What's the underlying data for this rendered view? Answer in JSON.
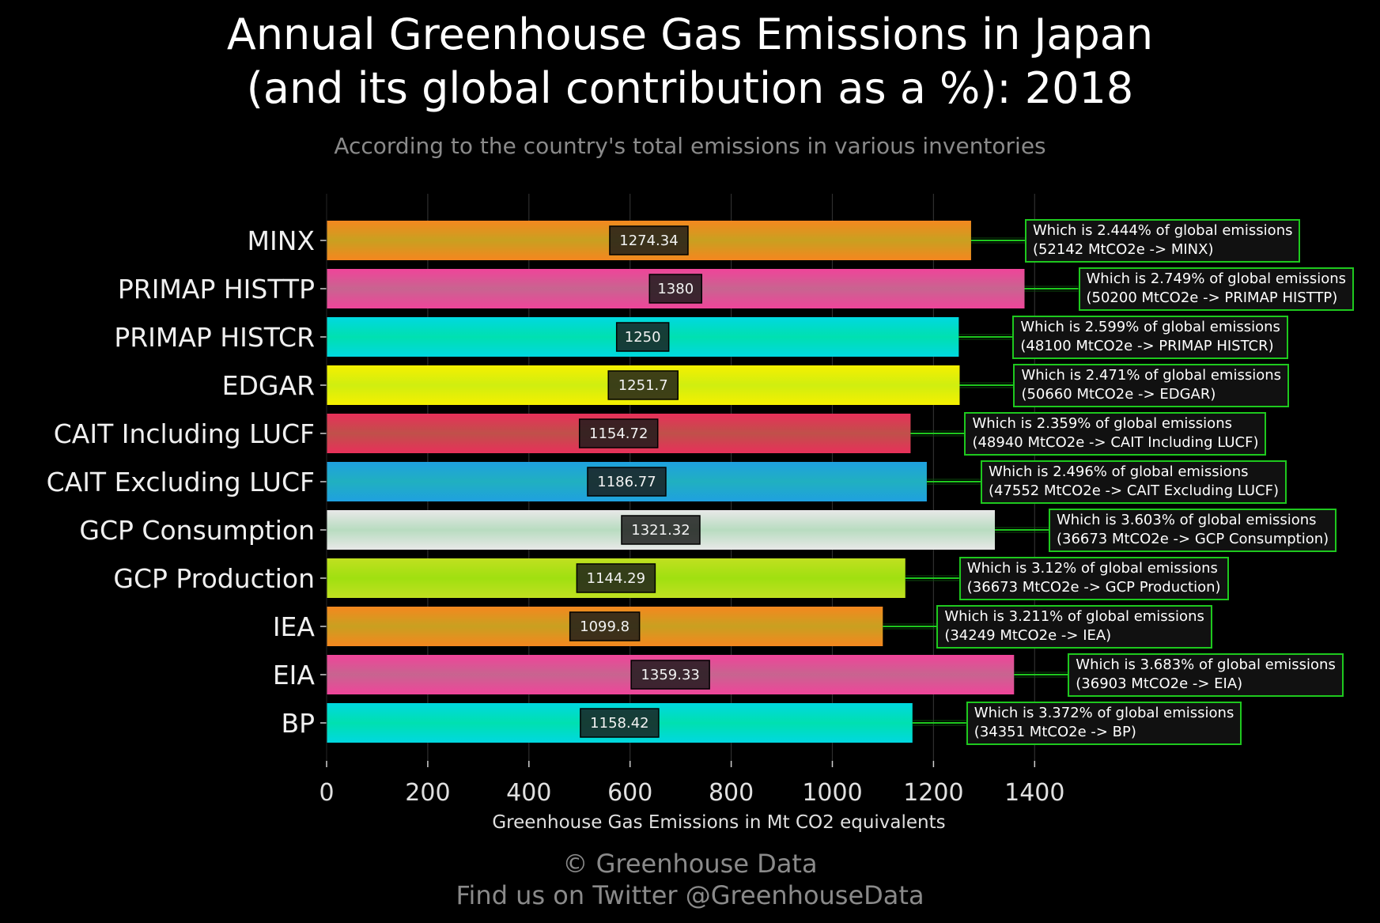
{
  "title_line1": "Annual Greenhouse Gas Emissions in Japan",
  "title_line2": "(and its global contribution as a %): 2018",
  "subtitle": "According to the country's total emissions in various inventories",
  "credit_line1": "© Greenhouse Data",
  "credit_line2": "Find us on Twitter @GreenhouseData",
  "chart_data": {
    "type": "bar",
    "orientation": "horizontal",
    "title": "Annual Greenhouse Gas Emissions in Japan (and its global contribution as a %): 2018",
    "subtitle": "According to the country's total emissions in various inventories",
    "xlabel": "Greenhouse Gas Emissions in Mt CO2 equivalents",
    "ylabel": "",
    "xlim": [
      0,
      1420
    ],
    "xticks": [
      0,
      200,
      400,
      600,
      800,
      1000,
      1200,
      1400
    ],
    "grid": true,
    "categories": [
      "MINX",
      "PRIMAP HISTTP",
      "PRIMAP HISTCR",
      "EDGAR",
      "CAIT Including LUCF",
      "CAIT Excluding LUCF",
      "GCP Consumption",
      "GCP Production",
      "IEA",
      "EIA",
      "BP"
    ],
    "values": [
      1274.34,
      1380,
      1250,
      1251.7,
      1154.72,
      1186.77,
      1321.32,
      1144.29,
      1099.8,
      1359.33,
      1158.42
    ],
    "value_labels": [
      "1274.34",
      "1380",
      "1250",
      "1251.7",
      "1154.72",
      "1186.77",
      "1321.32",
      "1144.29",
      "1099.8",
      "1359.33",
      "1158.42"
    ],
    "annotations": [
      [
        "Which is 2.444% of global emissions",
        "(52142 MtCO2e -> MINX)"
      ],
      [
        "Which is 2.749% of global emissions",
        "(50200 MtCO2e -> PRIMAP HISTTP)"
      ],
      [
        "Which is 2.599% of global emissions",
        "(48100 MtCO2e -> PRIMAP HISTCR)"
      ],
      [
        "Which is 2.471% of global emissions",
        "(50660 MtCO2e -> EDGAR)"
      ],
      [
        "Which is 2.359% of global emissions",
        "(48940 MtCO2e -> CAIT Including LUCF)"
      ],
      [
        "Which is 2.496% of global emissions",
        "(47552 MtCO2e -> CAIT Excluding LUCF)"
      ],
      [
        "Which is 3.603% of global emissions",
        "(36673 MtCO2e -> GCP Consumption)"
      ],
      [
        "Which is 3.12% of global emissions",
        "(36673 MtCO2e -> GCP Production)"
      ],
      [
        "Which is 3.211% of global emissions",
        "(34249 MtCO2e -> IEA)"
      ],
      [
        "Which is 3.683% of global emissions",
        "(36903 MtCO2e -> EIA)"
      ],
      [
        "Which is 3.372% of global emissions",
        "(34351 MtCO2e -> BP)"
      ]
    ],
    "bar_gradients": [
      [
        "#f5871f",
        "#c9a020"
      ],
      [
        "#f0449a",
        "#c86490"
      ],
      [
        "#00d8e0",
        "#00e0b0"
      ],
      [
        "#f5f000",
        "#d0ee10"
      ],
      [
        "#e8305a",
        "#c0504a"
      ],
      [
        "#1fa0e0",
        "#20b0c0"
      ],
      [
        "#e8e8e8",
        "#b8dcc0"
      ],
      [
        "#c0e020",
        "#a0e010"
      ],
      [
        "#f5871f",
        "#c9a020"
      ],
      [
        "#f0449a",
        "#c86490"
      ],
      [
        "#00d8e0",
        "#00e0b0"
      ]
    ],
    "annotation_border_color": "#1ec81e",
    "label_color": "#ffffff"
  }
}
